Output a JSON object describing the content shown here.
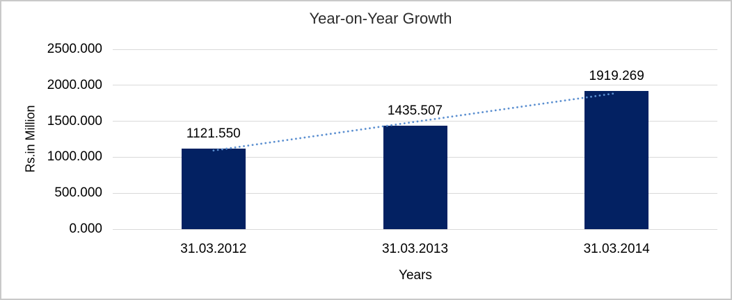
{
  "frame": {
    "border_color": "#c9c9c9",
    "background": "#ffffff"
  },
  "chart_data": {
    "type": "bar",
    "title": "Year-on-Year Growth",
    "xlabel": "Years",
    "ylabel": "Rs.in Million",
    "categories": [
      "31.03.2012",
      "31.03.2013",
      "31.03.2014"
    ],
    "values": [
      1121.55,
      1435.507,
      1919.269
    ],
    "data_labels": [
      "1121.550",
      "1435.507",
      "1919.269"
    ],
    "y_ticks": [
      {
        "value": 0,
        "label": "0.000"
      },
      {
        "value": 500,
        "label": "500.000"
      },
      {
        "value": 1000,
        "label": "1000.000"
      },
      {
        "value": 1500,
        "label": "1500.000"
      },
      {
        "value": 2000,
        "label": "2000.000"
      },
      {
        "value": 2500,
        "label": "2500.000"
      }
    ],
    "ylim": [
      0,
      2500
    ],
    "grid": true,
    "legend_position": "none",
    "bar_color": "#032162",
    "gridline_color": "#d9d9d9",
    "trendline": {
      "type": "linear",
      "style": "dotted",
      "color": "#5b8fd0"
    }
  }
}
